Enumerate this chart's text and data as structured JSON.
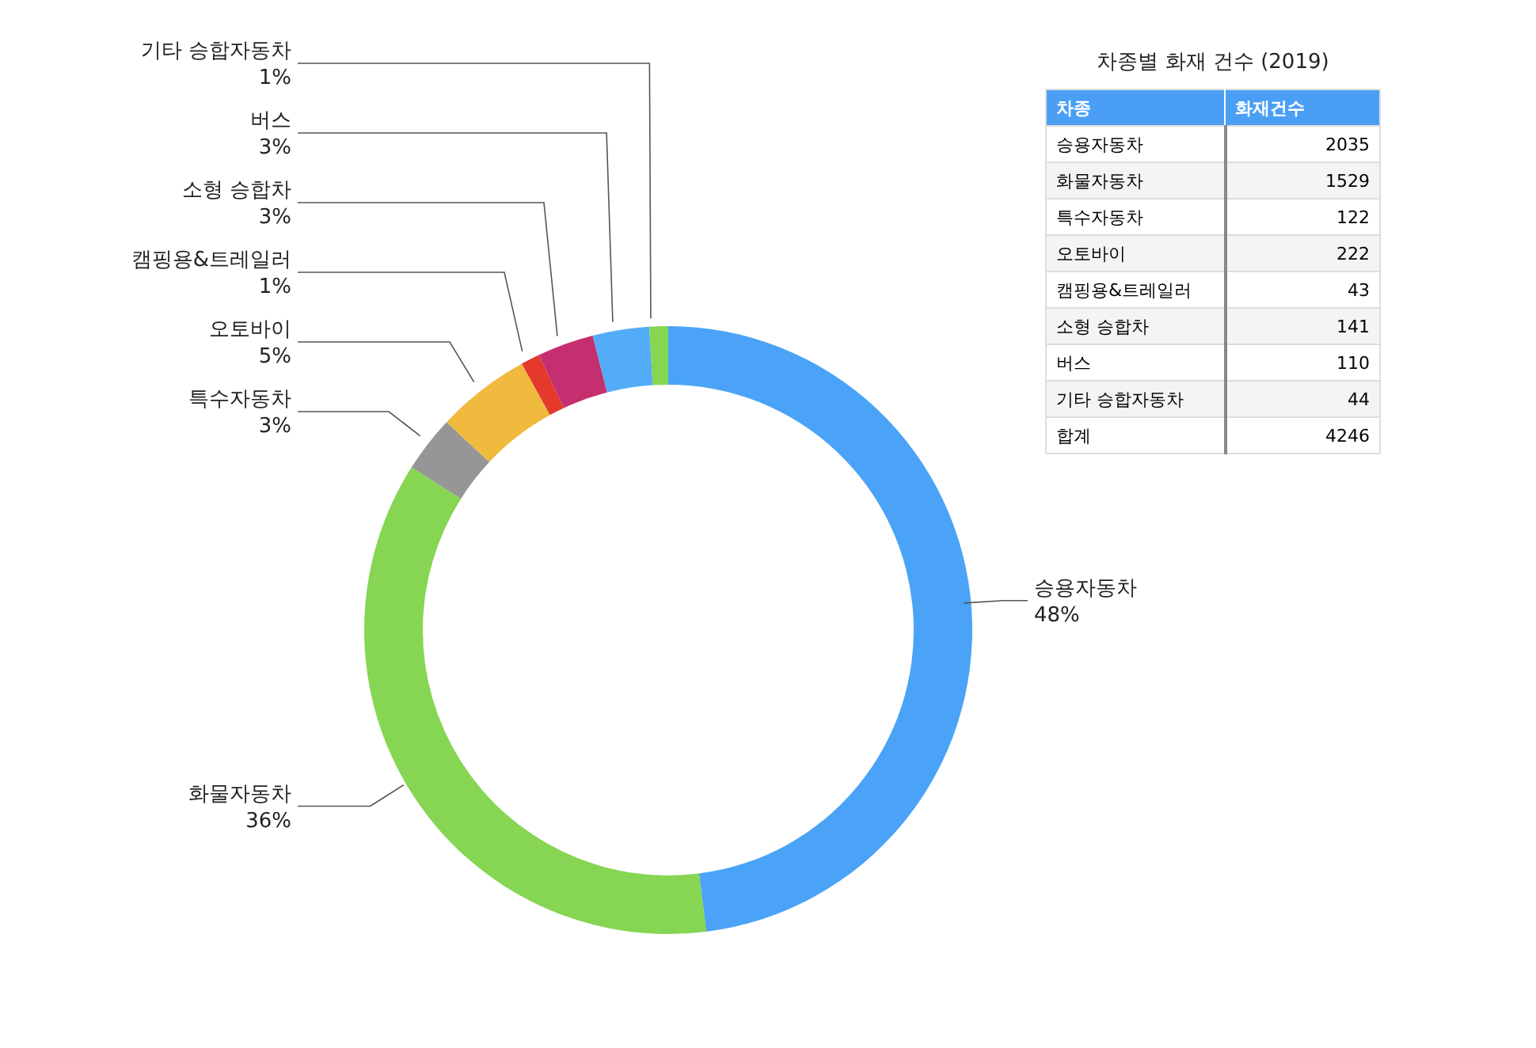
{
  "chart_data": [
    {
      "type": "donut",
      "categories": [
        "승용자동차",
        "화물자동차",
        "특수자동차",
        "오토바이",
        "캠핑용&트레일러",
        "소형 승합차",
        "버스",
        "기타 승합자동차"
      ],
      "values": [
        48,
        36,
        3,
        5,
        1,
        3,
        3,
        1
      ],
      "colors": [
        "#4aa3f7",
        "#86d553",
        "#969696",
        "#f0ba3e",
        "#e4392b",
        "#c4306f",
        "#53acf8",
        "#86d553"
      ],
      "value_labels": [
        "48%",
        "36%",
        "3%",
        "5%",
        "1%",
        "3%",
        "3%",
        "1%"
      ]
    },
    {
      "type": "other",
      "title": "차종별 화재 건수 (2019)",
      "xlabel": "차종",
      "ylabel": "화재건수",
      "categories": [
        "승용자동차",
        "화물자동차",
        "특수자동차",
        "오토바이",
        "캠핑용&트레일러",
        "소형 승합차",
        "버스",
        "기타 승합자동차",
        "합계"
      ],
      "values": [
        2035,
        1529,
        122,
        222,
        43,
        141,
        110,
        44,
        4246
      ],
      "data_labels": true
    }
  ]
}
